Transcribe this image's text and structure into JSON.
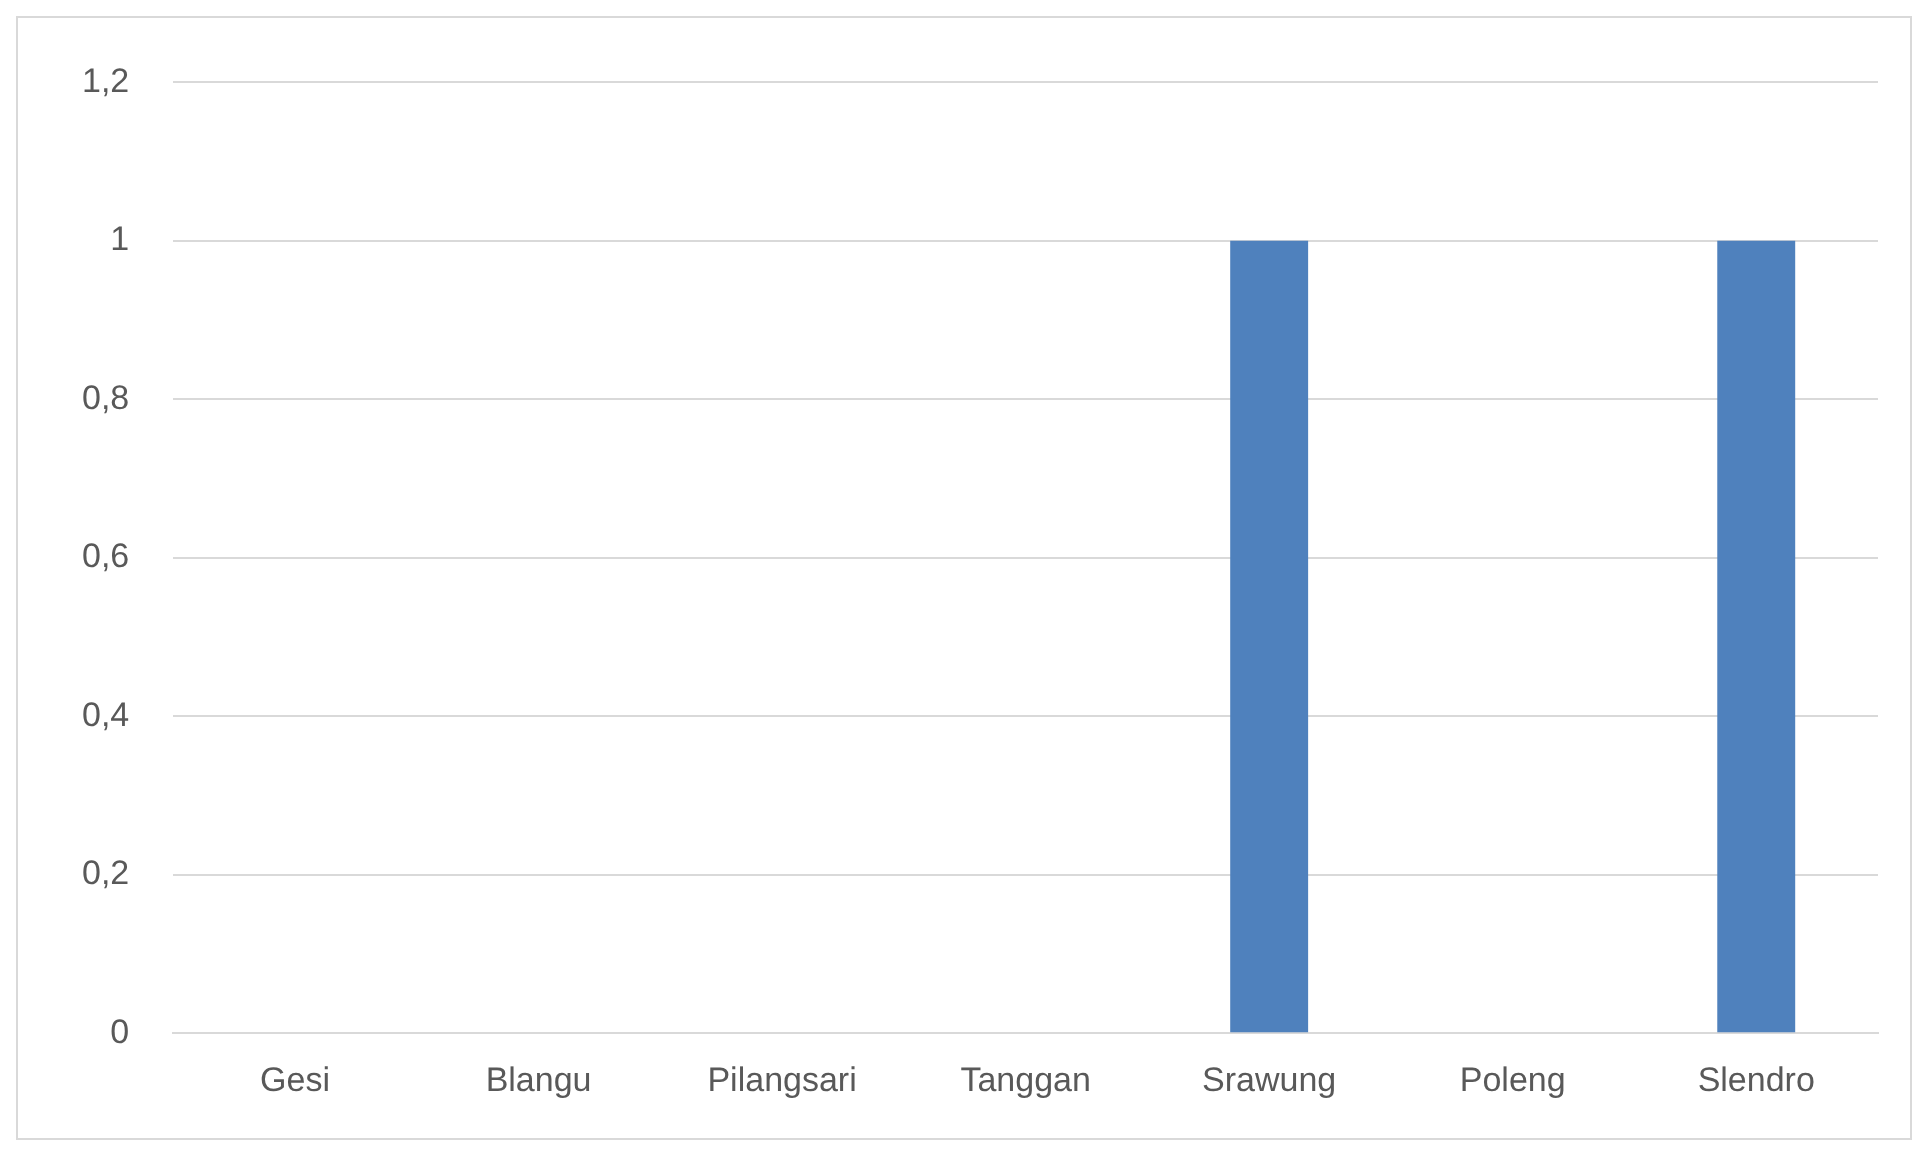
{
  "chart_data": {
    "type": "bar",
    "categories": [
      "Gesi",
      "Blangu",
      "Pilangsari",
      "Tanggan",
      "Srawung",
      "Poleng",
      "Slendro"
    ],
    "values": [
      0,
      0,
      0,
      0,
      1,
      0,
      1
    ],
    "color": "#4f81bd",
    "ylim": [
      0,
      1.2
    ],
    "yticks": [
      0,
      {
        "value": 0.2,
        "label": "0,2"
      },
      {
        "value": 0.4,
        "label": "0,4"
      },
      {
        "value": 0.6,
        "label": "0,6"
      },
      {
        "value": 0.8,
        "label": "0,8"
      },
      1,
      {
        "value": 1.2,
        "label": "1,2"
      }
    ],
    "grid": "y",
    "legend": false
  }
}
